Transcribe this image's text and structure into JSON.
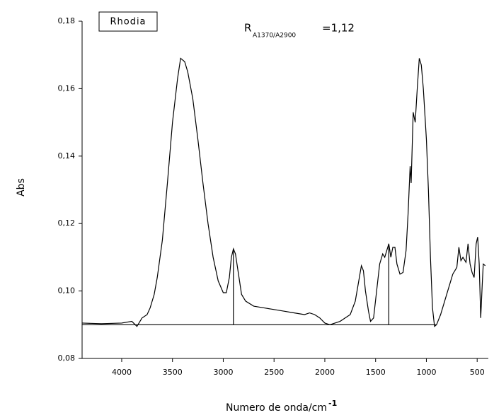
{
  "chart_data": {
    "type": "line",
    "annotation_box": "Rhodia",
    "ratio": {
      "symbol": "R",
      "subscript": "A1370/A2900",
      "text": "=1,12"
    },
    "y_label": "Abs",
    "x_label": {
      "text": "Numero de onda/cm",
      "superscript": "-1"
    },
    "xlim": [
      4390,
      390
    ],
    "ylim": [
      0.08,
      0.18
    ],
    "xticks": [
      4000,
      3500,
      3000,
      2500,
      2000,
      1500,
      1000,
      500
    ],
    "yticks": [
      {
        "value": 0.08,
        "label": "0,08"
      },
      {
        "value": 0.1,
        "label": "0,10"
      },
      {
        "value": 0.12,
        "label": "0,12"
      },
      {
        "value": 0.14,
        "label": "0,14"
      },
      {
        "value": 0.16,
        "label": "0,16"
      },
      {
        "value": 0.18,
        "label": "0,18"
      }
    ],
    "series": [
      {
        "color": "#000000",
        "x": [
          4390,
          4200,
          4000,
          3900,
          3850,
          3800,
          3750,
          3720,
          3680,
          3650,
          3600,
          3550,
          3500,
          3450,
          3420,
          3380,
          3350,
          3300,
          3250,
          3200,
          3150,
          3100,
          3050,
          3000,
          2970,
          2940,
          2920,
          2900,
          2880,
          2850,
          2820,
          2780,
          2700,
          2600,
          2500,
          2400,
          2300,
          2200,
          2150,
          2100,
          2050,
          2000,
          1950,
          1900,
          1850,
          1800,
          1750,
          1700,
          1660,
          1640,
          1620,
          1600,
          1570,
          1550,
          1520,
          1490,
          1460,
          1430,
          1410,
          1390,
          1370,
          1350,
          1330,
          1310,
          1290,
          1260,
          1230,
          1200,
          1180,
          1160,
          1150,
          1130,
          1110,
          1090,
          1070,
          1050,
          1030,
          1000,
          980,
          960,
          940,
          920,
          900,
          860,
          820,
          780,
          740,
          700,
          680,
          660,
          640,
          610,
          590,
          570,
          550,
          530,
          510,
          495,
          480,
          465,
          450,
          440,
          420
        ],
        "values": [
          0.0905,
          0.0903,
          0.0905,
          0.091,
          0.0895,
          0.092,
          0.093,
          0.095,
          0.099,
          0.104,
          0.115,
          0.132,
          0.15,
          0.163,
          0.169,
          0.168,
          0.165,
          0.157,
          0.145,
          0.132,
          0.12,
          0.11,
          0.103,
          0.0995,
          0.0995,
          0.104,
          0.11,
          0.1125,
          0.111,
          0.105,
          0.099,
          0.097,
          0.0955,
          0.095,
          0.0945,
          0.094,
          0.0935,
          0.093,
          0.0935,
          0.093,
          0.092,
          0.0905,
          0.09,
          0.0905,
          0.091,
          0.092,
          0.093,
          0.097,
          0.104,
          0.1075,
          0.106,
          0.1,
          0.094,
          0.091,
          0.092,
          0.1,
          0.108,
          0.111,
          0.11,
          0.112,
          0.114,
          0.11,
          0.113,
          0.113,
          0.108,
          0.105,
          0.1055,
          0.112,
          0.123,
          0.137,
          0.132,
          0.153,
          0.15,
          0.16,
          0.169,
          0.167,
          0.16,
          0.145,
          0.13,
          0.11,
          0.095,
          0.0895,
          0.09,
          0.093,
          0.097,
          0.101,
          0.105,
          0.107,
          0.113,
          0.109,
          0.11,
          0.1085,
          0.114,
          0.108,
          0.1055,
          0.104,
          0.114,
          0.116,
          0.108,
          0.092,
          0.102,
          0.108,
          0.1075
        ]
      },
      {
        "color": "#000000",
        "x": [
          4390,
          900
        ],
        "values": [
          0.09,
          0.09
        ]
      },
      {
        "color": "#000000",
        "x": [
          2900,
          2900
        ],
        "values": [
          0.09,
          0.1125
        ]
      },
      {
        "color": "#000000",
        "x": [
          1370,
          1370
        ],
        "values": [
          0.09,
          0.114
        ]
      }
    ]
  }
}
